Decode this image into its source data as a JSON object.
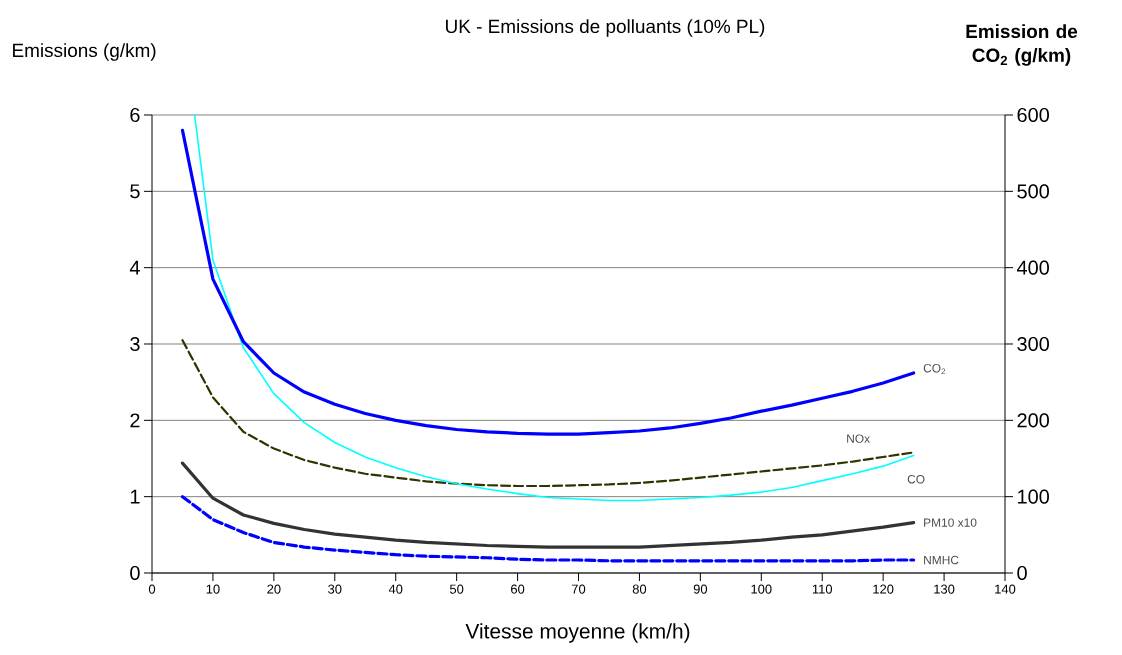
{
  "chart_data": {
    "type": "line",
    "title": "UK - Emissions de polluants (10% PL)",
    "xlabel": "Vitesse moyenne (km/h)",
    "ylabel": "Emissions (g/km)",
    "y2label": "**Emission de CO$_{2}$ (g/km)**",
    "x": [
      5,
      10,
      15,
      20,
      25,
      30,
      35,
      40,
      45,
      50,
      55,
      60,
      65,
      70,
      75,
      80,
      85,
      90,
      95,
      100,
      105,
      110,
      115,
      120,
      125
    ],
    "series": [
      {
        "name": "CO$_{2}$",
        "color": "#0000ff",
        "axis": "y2",
        "line_style": "solid",
        "values": [
          580,
          385,
          303,
          262,
          237,
          221,
          209,
          200,
          193,
          188,
          185,
          183,
          182,
          182,
          184,
          186,
          190,
          196,
          203,
          212,
          220,
          229,
          238,
          249,
          262
        ]
      },
      {
        "name": "NOx",
        "color": "#333300",
        "line_style": "dashed",
        "values": [
          3.05,
          2.3,
          1.85,
          1.63,
          1.48,
          1.38,
          1.3,
          1.25,
          1.2,
          1.17,
          1.15,
          1.14,
          1.14,
          1.15,
          1.16,
          1.18,
          1.21,
          1.25,
          1.29,
          1.33,
          1.37,
          1.41,
          1.46,
          1.52,
          1.58
        ]
      },
      {
        "name": "CO",
        "color": "#00ffff",
        "line_style": "solid",
        "x": [
          7,
          10,
          15,
          20,
          25,
          30,
          35,
          40,
          45,
          50,
          55,
          60,
          65,
          70,
          75,
          80,
          85,
          90,
          95,
          100,
          105,
          110,
          115,
          120,
          125
        ],
        "values": [
          6.0,
          4.1,
          2.95,
          2.35,
          1.97,
          1.71,
          1.52,
          1.38,
          1.26,
          1.17,
          1.1,
          1.04,
          0.99,
          0.97,
          0.95,
          0.95,
          0.97,
          0.99,
          1.02,
          1.06,
          1.12,
          1.21,
          1.3,
          1.4,
          1.54
        ]
      },
      {
        "name": "PM10 x10",
        "color": "#333333",
        "line_style": "solid",
        "values": [
          1.44,
          0.98,
          0.76,
          0.65,
          0.57,
          0.51,
          0.47,
          0.43,
          0.4,
          0.38,
          0.36,
          0.35,
          0.34,
          0.34,
          0.34,
          0.34,
          0.36,
          0.38,
          0.4,
          0.43,
          0.47,
          0.5,
          0.55,
          0.6,
          0.66
        ]
      },
      {
        "name": "NMHC",
        "color": "#0000ff",
        "line_style": "dashed",
        "values": [
          1.0,
          0.7,
          0.53,
          0.4,
          0.34,
          0.3,
          0.27,
          0.24,
          0.22,
          0.21,
          0.2,
          0.18,
          0.17,
          0.17,
          0.16,
          0.16,
          0.16,
          0.16,
          0.16,
          0.16,
          0.16,
          0.16,
          0.16,
          0.17,
          0.17
        ]
      }
    ],
    "xlim": [
      0,
      140
    ],
    "xticks": [
      0,
      10,
      20,
      30,
      40,
      50,
      60,
      70,
      80,
      90,
      100,
      110,
      120,
      130,
      140
    ],
    "ylim": [
      0,
      6
    ],
    "yticks": [
      0,
      1,
      2,
      3,
      4,
      5,
      6
    ],
    "y2lim": [
      0,
      600
    ],
    "y2ticks": [
      0,
      100,
      200,
      300,
      400,
      500,
      600
    ],
    "grid": "y"
  }
}
